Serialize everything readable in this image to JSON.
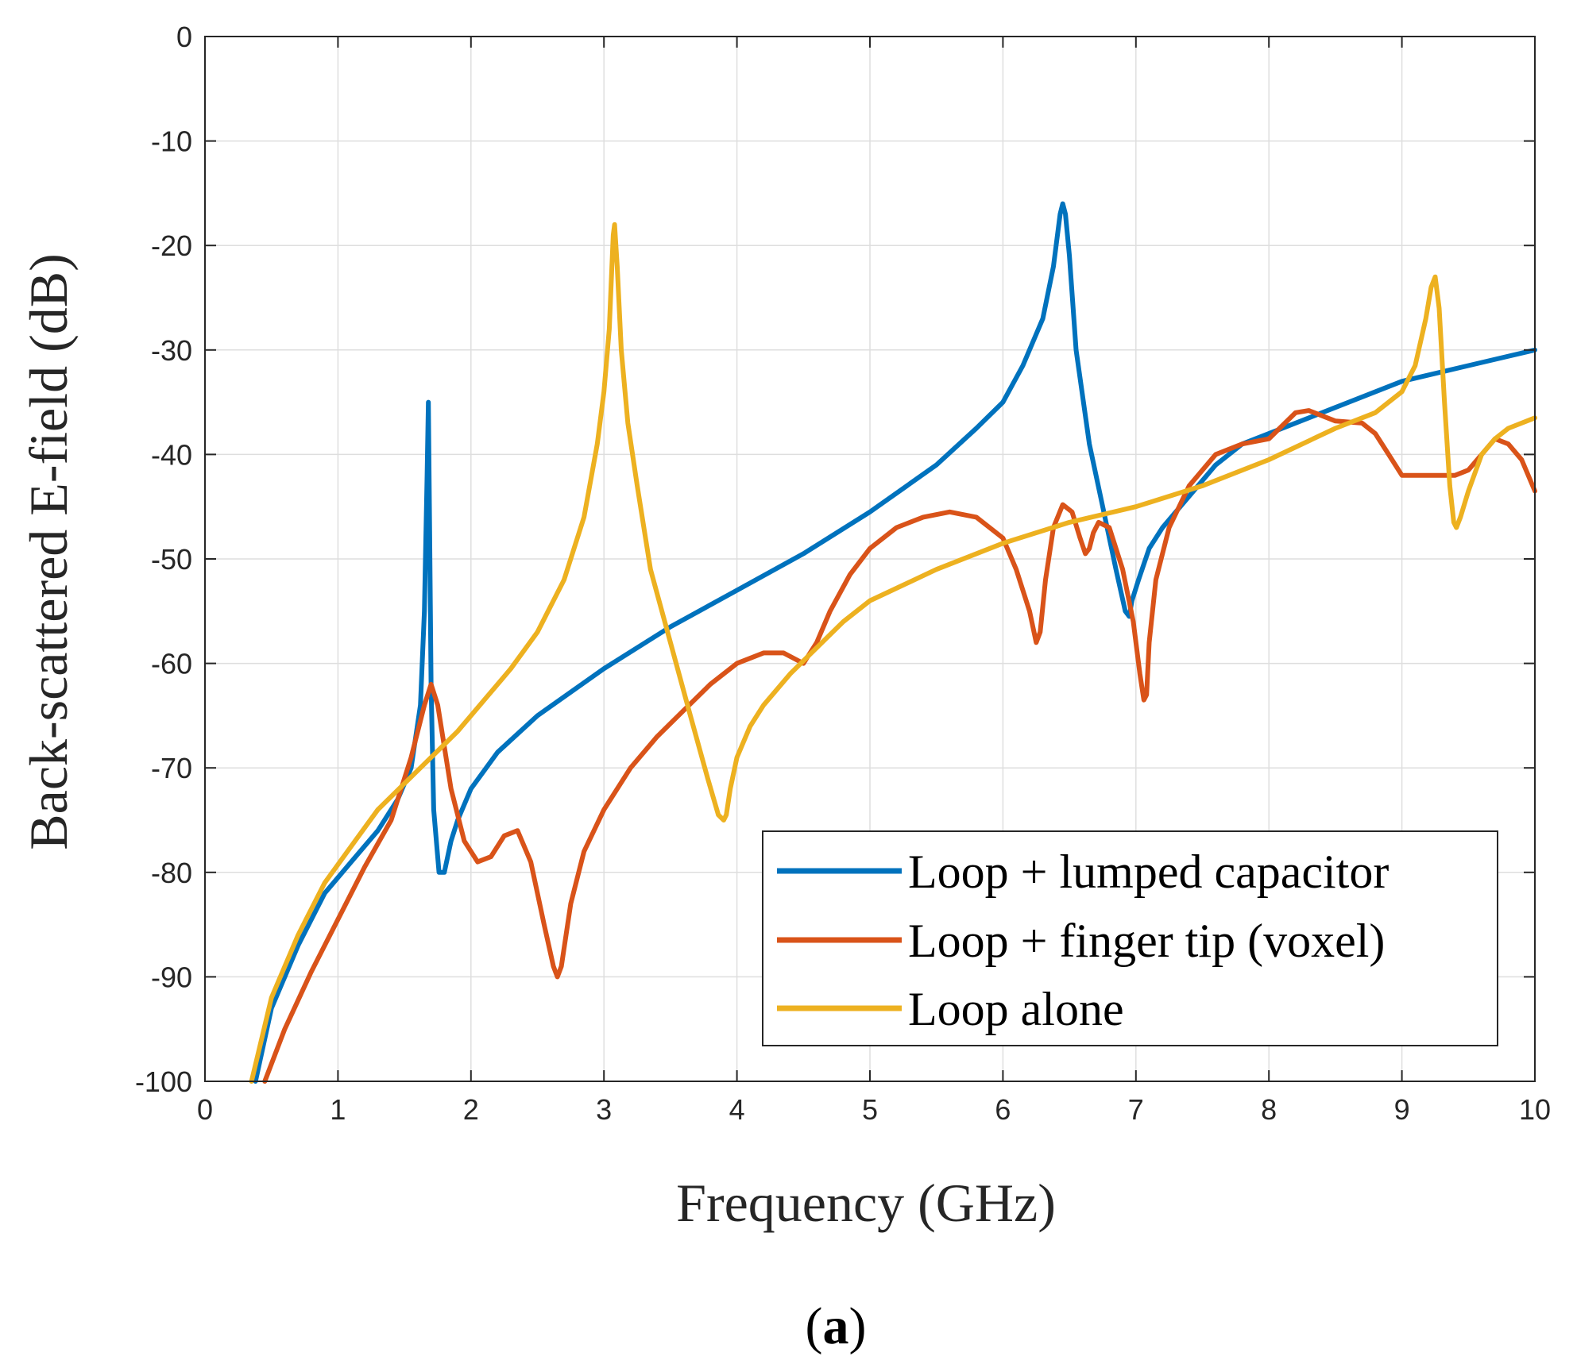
{
  "chart_data": {
    "type": "line",
    "xlabel": "Frequency (GHz)",
    "ylabel": "Back-scattered E-field (dB)",
    "xlim": [
      0,
      10
    ],
    "ylim": [
      -100,
      0
    ],
    "xticks": [
      0,
      1,
      2,
      3,
      4,
      5,
      6,
      7,
      8,
      9,
      10
    ],
    "yticks": [
      0,
      -10,
      -20,
      -30,
      -40,
      -50,
      -60,
      -70,
      -80,
      -90,
      -100
    ],
    "grid": true,
    "legend_position": "bottom-right",
    "caption": {
      "open": "(",
      "letter": "a",
      "close": ")"
    },
    "series": [
      {
        "name": "Loop + lumped capacitor",
        "color": "#0072BD",
        "x": [
          0.38,
          0.5,
          0.7,
          0.9,
          1.1,
          1.3,
          1.45,
          1.55,
          1.62,
          1.65,
          1.67,
          1.68,
          1.69,
          1.7,
          1.72,
          1.76,
          1.8,
          1.85,
          1.9,
          2.0,
          2.2,
          2.5,
          3.0,
          3.5,
          4.0,
          4.5,
          5.0,
          5.5,
          5.8,
          6.0,
          6.15,
          6.3,
          6.38,
          6.43,
          6.45,
          6.47,
          6.5,
          6.55,
          6.65,
          6.75,
          6.85,
          6.92,
          6.95,
          6.97,
          7.02,
          7.1,
          7.2,
          7.4,
          7.6,
          7.8,
          8.0,
          8.5,
          9.0,
          9.5,
          10.0
        ],
        "y": [
          -100,
          -93,
          -87,
          -82,
          -79,
          -76,
          -73,
          -70,
          -64,
          -55,
          -42,
          -35,
          -48,
          -62,
          -74,
          -80,
          -80,
          -77,
          -75,
          -72,
          -68.5,
          -65,
          -60.5,
          -56.5,
          -53,
          -49.5,
          -45.5,
          -41,
          -37.5,
          -35,
          -31.5,
          -27,
          -22,
          -17,
          -16,
          -17,
          -21,
          -30,
          -39,
          -45,
          -51,
          -55,
          -55.5,
          -54,
          -52,
          -49,
          -47,
          -44,
          -41,
          -39,
          -38,
          -35.5,
          -33,
          -31.5,
          -30
        ]
      },
      {
        "name": "Loop + finger tip (voxel)",
        "color": "#D95319",
        "x": [
          0.45,
          0.6,
          0.8,
          1.0,
          1.2,
          1.4,
          1.55,
          1.65,
          1.7,
          1.75,
          1.85,
          1.95,
          2.05,
          2.15,
          2.25,
          2.35,
          2.45,
          2.55,
          2.62,
          2.65,
          2.68,
          2.75,
          2.85,
          3.0,
          3.2,
          3.4,
          3.6,
          3.8,
          4.0,
          4.2,
          4.35,
          4.5,
          4.6,
          4.7,
          4.85,
          5.0,
          5.2,
          5.4,
          5.6,
          5.8,
          6.0,
          6.1,
          6.2,
          6.25,
          6.28,
          6.32,
          6.38,
          6.45,
          6.52,
          6.58,
          6.62,
          6.65,
          6.68,
          6.72,
          6.8,
          6.9,
          6.98,
          7.03,
          7.06,
          7.08,
          7.1,
          7.15,
          7.25,
          7.4,
          7.6,
          7.8,
          8.0,
          8.2,
          8.3,
          8.5,
          8.7,
          8.8,
          8.9,
          9.0,
          9.2,
          9.4,
          9.5,
          9.6,
          9.7,
          9.8,
          9.9,
          10.0
        ],
        "y": [
          -100,
          -95,
          -89.5,
          -84.5,
          -79.5,
          -75,
          -69,
          -64,
          -62,
          -64,
          -72,
          -77,
          -79,
          -78.5,
          -76.5,
          -76,
          -79,
          -85,
          -89,
          -90,
          -89,
          -83,
          -78,
          -74,
          -70,
          -67,
          -64.5,
          -62,
          -60,
          -59,
          -59,
          -60,
          -58,
          -55,
          -51.5,
          -49,
          -47,
          -46,
          -45.5,
          -46,
          -48,
          -51,
          -55,
          -58,
          -57,
          -52,
          -47,
          -44.8,
          -45.5,
          -48,
          -49.5,
          -49,
          -47.5,
          -46.5,
          -47,
          -51,
          -56,
          -61,
          -63.5,
          -63,
          -58,
          -52,
          -47,
          -43,
          -40,
          -39,
          -38.5,
          -36,
          -35.8,
          -36.8,
          -37,
          -38,
          -40,
          -42,
          -42,
          -42,
          -41.5,
          -40,
          -38.5,
          -39,
          -40.5,
          -43.5
        ]
      },
      {
        "name": "Loop alone",
        "color": "#EDB120",
        "x": [
          0.35,
          0.5,
          0.7,
          0.9,
          1.1,
          1.3,
          1.5,
          1.7,
          1.9,
          2.1,
          2.3,
          2.5,
          2.7,
          2.85,
          2.95,
          3.0,
          3.04,
          3.06,
          3.07,
          3.08,
          3.1,
          3.13,
          3.18,
          3.25,
          3.35,
          3.5,
          3.65,
          3.78,
          3.86,
          3.9,
          3.92,
          3.95,
          4.0,
          4.1,
          4.2,
          4.4,
          4.6,
          4.8,
          5.0,
          5.5,
          6.0,
          6.5,
          7.0,
          7.5,
          8.0,
          8.5,
          8.8,
          9.0,
          9.1,
          9.18,
          9.22,
          9.25,
          9.28,
          9.32,
          9.36,
          9.39,
          9.41,
          9.44,
          9.5,
          9.6,
          9.7,
          9.8,
          10.0
        ],
        "y": [
          -100,
          -92,
          -86,
          -81,
          -77.5,
          -74,
          -71.5,
          -69,
          -66.5,
          -63.5,
          -60.5,
          -57,
          -52,
          -46,
          -39,
          -34,
          -28,
          -22,
          -19,
          -18,
          -22,
          -30,
          -37,
          -43,
          -51,
          -58,
          -65,
          -71,
          -74.5,
          -75,
          -74.5,
          -72,
          -69,
          -66,
          -64,
          -61,
          -58.5,
          -56,
          -54,
          -51,
          -48.5,
          -46.5,
          -45,
          -43,
          -40.5,
          -37.5,
          -36,
          -34,
          -31.5,
          -27,
          -24,
          -23,
          -26,
          -35,
          -43,
          -46.5,
          -47,
          -46,
          -43.5,
          -40,
          -38.5,
          -37.5,
          -36.5
        ]
      }
    ]
  }
}
